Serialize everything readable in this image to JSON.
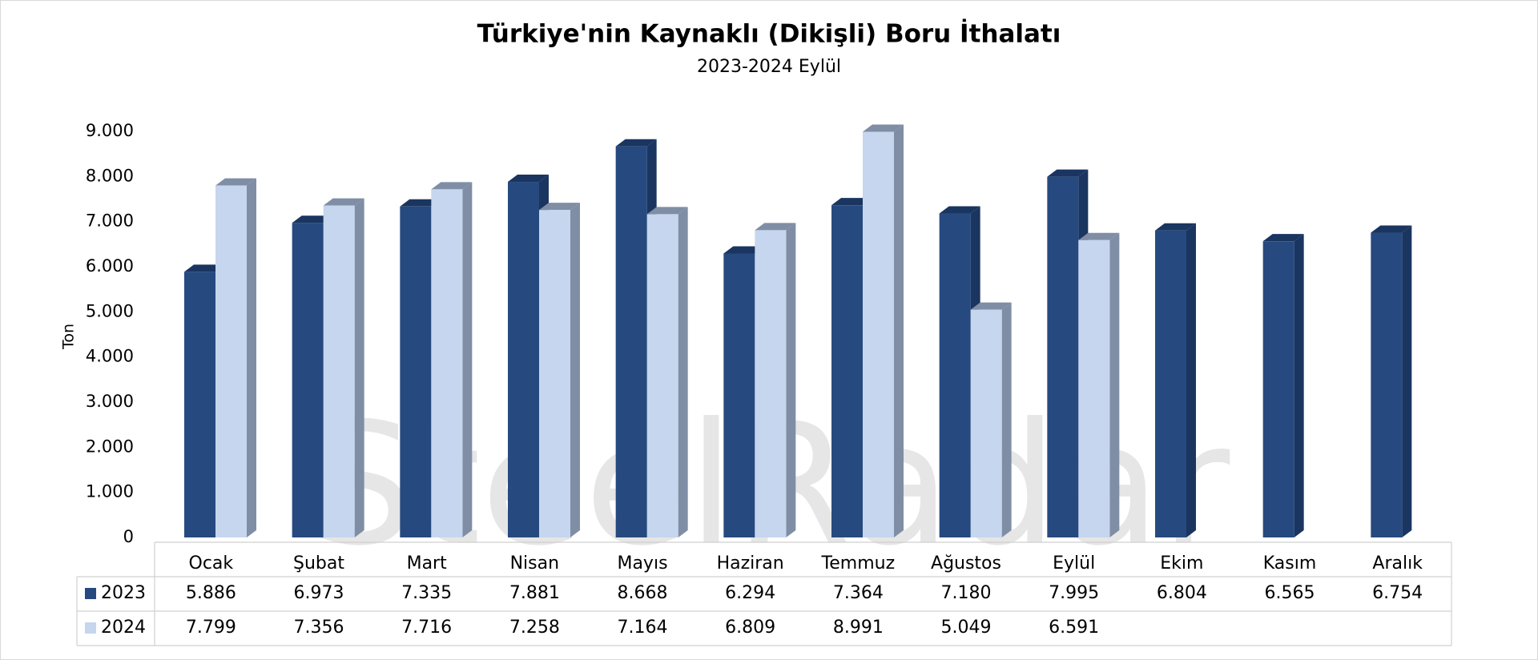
{
  "chart_data": {
    "type": "bar3d",
    "title": "Türkiye'nin Kaynaklı (Dikişli) Boru İthalatı",
    "subtitle": "2023-2024 Eylül",
    "y_label": "Ton",
    "watermark": "SteelRadar",
    "categories": [
      "Ocak",
      "Şubat",
      "Mart",
      "Nisan",
      "Mayıs",
      "Haziran",
      "Temmuz",
      "Ağustos",
      "Eylül",
      "Ekim",
      "Kasım",
      "Aralık"
    ],
    "series": [
      {
        "name": "2023",
        "color": "#264a7f",
        "side_color": "#1a3560",
        "values": [
          5886,
          6973,
          7335,
          7881,
          8668,
          6294,
          7364,
          7180,
          7995,
          6804,
          6565,
          6754
        ],
        "value_labels": [
          "5.886",
          "6.973",
          "7.335",
          "7.881",
          "8.668",
          "6.294",
          "7.364",
          "7.180",
          "7.995",
          "6.804",
          "6.565",
          "6.754"
        ]
      },
      {
        "name": "2024",
        "color": "#c5d6ee",
        "side_color": "#7f8ea5",
        "values": [
          7799,
          7356,
          7716,
          7258,
          7164,
          6809,
          8991,
          5049,
          6591,
          null,
          null,
          null
        ],
        "value_labels": [
          "7.799",
          "7.356",
          "7.716",
          "7.258",
          "7.164",
          "6.809",
          "8.991",
          "5.049",
          "6.591",
          null,
          null,
          null
        ]
      }
    ],
    "ylim": [
      0,
      9000
    ],
    "yticks": [
      0,
      {
        "value": 1000,
        "label": "1.000"
      },
      {
        "value": 2000,
        "label": "2.000"
      },
      {
        "value": 3000,
        "label": "3.000"
      },
      {
        "value": 4000,
        "label": "4.000"
      },
      {
        "value": 5000,
        "label": "5.000"
      },
      {
        "value": 6000,
        "label": "6.000"
      },
      {
        "value": 7000,
        "label": "7.000"
      },
      {
        "value": 8000,
        "label": "8.000"
      },
      {
        "value": 9000,
        "label": "9.000"
      }
    ],
    "grid": false
  }
}
